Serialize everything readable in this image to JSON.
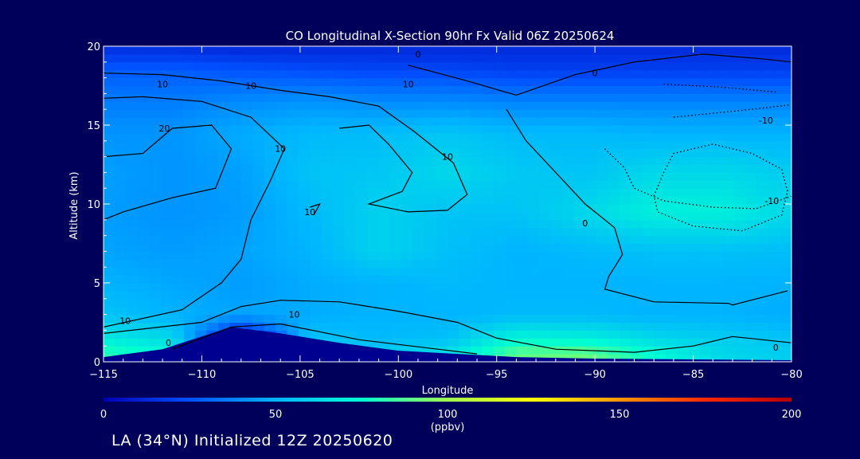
{
  "chart_data": {
    "type": "heatmap",
    "title": "CO Longitudinal X-Section 90hr  Fx Valid 06Z 20250624",
    "xlabel": "Longitude",
    "ylabel": "Altitude (km)",
    "xlim": [
      -115,
      -80
    ],
    "ylim": [
      0,
      20
    ],
    "x_ticks": [
      -115,
      -110,
      -105,
      -100,
      -95,
      -90,
      -85,
      -80
    ],
    "x_tick_labels": [
      "−115",
      "−110",
      "−105",
      "−100",
      "−95",
      "−90",
      "−85",
      "−80"
    ],
    "y_ticks": [
      0,
      5,
      10,
      15,
      20
    ],
    "y_tick_labels": [
      "0",
      "5",
      "10",
      "15",
      "20"
    ],
    "colorbar": {
      "min": 0,
      "max": 200,
      "ticks": [
        0,
        50,
        100,
        150,
        200
      ],
      "tick_labels": [
        "0",
        "50",
        "100",
        "150",
        "200"
      ],
      "units": "(ppbv)",
      "colors": [
        "#0000b4",
        "#0050ff",
        "#00b4ff",
        "#00ffd2",
        "#a0ff50",
        "#ffff00",
        "#ff9600",
        "#ff2800",
        "#b40000"
      ]
    },
    "grid": false,
    "field": {
      "x": [
        -115,
        -111.5,
        -108,
        -104.5,
        -101,
        -97.5,
        -94,
        -90.5,
        -87,
        -83.5,
        -80
      ],
      "y": [
        0.5,
        1.5,
        3,
        5,
        7,
        9.5,
        12,
        14.5,
        16.5,
        18.5,
        19.7
      ],
      "values": [
        [
          82,
          74,
          0,
          60,
          58,
          65,
          90,
          92,
          75,
          62,
          58
        ],
        [
          68,
          62,
          0,
          55,
          52,
          54,
          72,
          70,
          62,
          58,
          55
        ],
        [
          55,
          50,
          46,
          48,
          50,
          50,
          52,
          52,
          50,
          50,
          48
        ],
        [
          50,
          47,
          44,
          48,
          50,
          52,
          50,
          50,
          50,
          50,
          50
        ],
        [
          46,
          44,
          46,
          50,
          60,
          54,
          50,
          52,
          54,
          54,
          53
        ],
        [
          44,
          42,
          44,
          52,
          60,
          55,
          55,
          62,
          70,
          70,
          62
        ],
        [
          45,
          42,
          45,
          55,
          56,
          62,
          57,
          55,
          62,
          62,
          58
        ],
        [
          42,
          42,
          48,
          52,
          53,
          56,
          52,
          52,
          50,
          50,
          50
        ],
        [
          36,
          36,
          40,
          42,
          40,
          40,
          38,
          38,
          38,
          38,
          38
        ],
        [
          28,
          28,
          26,
          24,
          22,
          22,
          20,
          20,
          20,
          20,
          20
        ],
        [
          16,
          16,
          14,
          14,
          14,
          14,
          14,
          14,
          14,
          14,
          14
        ]
      ]
    },
    "terrain": [
      [
        -115,
        0.3
      ],
      [
        -112,
        0.8
      ],
      [
        -110,
        1.6
      ],
      [
        -108.5,
        2.2
      ],
      [
        -106,
        1.8
      ],
      [
        -103,
        1.2
      ],
      [
        -100,
        0.7
      ],
      [
        -97,
        0.5
      ],
      [
        -94,
        0.3
      ],
      [
        -90,
        0.2
      ],
      [
        -85,
        0.15
      ],
      [
        -80,
        0.1
      ]
    ],
    "contours": [
      {
        "label": "0",
        "dashed": false,
        "points": [
          [
            -111.5,
            0.8
          ],
          [
            -108.5,
            2.2
          ],
          [
            -106,
            2.4
          ],
          [
            -102,
            1.4
          ],
          [
            -98,
            0.8
          ],
          [
            -96,
            0.5
          ]
        ]
      },
      {
        "label": "10",
        "dashed": false,
        "points": [
          [
            -115,
            1.8
          ],
          [
            -110,
            2.5
          ],
          [
            -108,
            3.5
          ],
          [
            -106,
            3.9
          ],
          [
            -103,
            3.8
          ],
          [
            -100,
            3.2
          ],
          [
            -97,
            2.5
          ],
          [
            -95,
            1.5
          ],
          [
            -92,
            0.8
          ],
          [
            -88,
            0.6
          ],
          [
            -85,
            1.0
          ],
          [
            -83,
            1.6
          ],
          [
            -80,
            1.2
          ]
        ]
      },
      {
        "label": "10",
        "dashed": false,
        "points": [
          [
            -115,
            2.2
          ],
          [
            -111,
            3.3
          ],
          [
            -109,
            5.0
          ],
          [
            -108,
            6.5
          ],
          [
            -107.5,
            9.0
          ],
          [
            -106.5,
            11.5
          ],
          [
            -105.8,
            13.5
          ],
          [
            -107.5,
            15.5
          ],
          [
            -110,
            16.5
          ],
          [
            -113,
            16.8
          ],
          [
            -115,
            16.7
          ]
        ]
      },
      {
        "label": "20",
        "dashed": false,
        "points": [
          [
            -115,
            13.0
          ],
          [
            -113,
            13.2
          ],
          [
            -111.5,
            14.8
          ],
          [
            -109.5,
            15.0
          ],
          [
            -108.5,
            13.5
          ],
          [
            -109.3,
            11.0
          ],
          [
            -111.5,
            10.4
          ],
          [
            -114,
            9.5
          ],
          [
            -115,
            9.0
          ]
        ]
      },
      {
        "label": "10",
        "dashed": false,
        "points": [
          [
            -104.5,
            9.8
          ],
          [
            -104.0,
            10.0
          ],
          [
            -104.3,
            9.3
          ]
        ]
      },
      {
        "label": "10",
        "dashed": false,
        "points": [
          [
            -103,
            14.8
          ],
          [
            -101.5,
            15.0
          ],
          [
            -100.5,
            13.8
          ],
          [
            -99.3,
            12.0
          ],
          [
            -99.8,
            10.8
          ],
          [
            -101.5,
            10.0
          ],
          [
            -99.5,
            9.5
          ],
          [
            -97.5,
            9.6
          ],
          [
            -96.5,
            10.6
          ],
          [
            -97.2,
            12.6
          ],
          [
            -99.2,
            14.6
          ],
          [
            -101,
            16.2
          ],
          [
            -103.5,
            16.8
          ],
          [
            -106,
            17.2
          ],
          [
            -109,
            17.8
          ],
          [
            -112,
            18.2
          ],
          [
            -115,
            18.3
          ]
        ]
      },
      {
        "label": "0",
        "dashed": false,
        "points": [
          [
            -94.5,
            16.0
          ],
          [
            -93.5,
            14.0
          ],
          [
            -92.0,
            12.0
          ],
          [
            -90.5,
            10.0
          ],
          [
            -89.0,
            8.5
          ],
          [
            -88.6,
            6.8
          ],
          [
            -89.3,
            5.4
          ],
          [
            -89.5,
            4.6
          ],
          [
            -87.0,
            3.8
          ],
          [
            -83.2,
            3.7
          ],
          [
            -83.0,
            3.6
          ],
          [
            -80.2,
            4.5
          ]
        ]
      },
      {
        "label": "0",
        "dashed": false,
        "points": [
          [
            -99.5,
            18.8
          ],
          [
            -96.5,
            17.8
          ],
          [
            -94.0,
            16.9
          ],
          [
            -91.0,
            18.2
          ],
          [
            -88.0,
            19.0
          ],
          [
            -84.5,
            19.5
          ],
          [
            -81.5,
            19.2
          ],
          [
            -80,
            19.0
          ]
        ]
      },
      {
        "label": "-10",
        "dashed": true,
        "points": [
          [
            -86,
            15.5
          ],
          [
            -82,
            16.0
          ],
          [
            -80,
            16.3
          ]
        ]
      },
      {
        "label": "-10",
        "dashed": true,
        "points": [
          [
            -87.0,
            10.5
          ],
          [
            -86.5,
            12.0
          ],
          [
            -86.0,
            13.2
          ],
          [
            -84.0,
            13.8
          ],
          [
            -82.0,
            13.2
          ],
          [
            -80.5,
            12.2
          ],
          [
            -80.2,
            10.8
          ],
          [
            -80.5,
            9.3
          ],
          [
            -82.5,
            8.3
          ],
          [
            -85.0,
            8.6
          ],
          [
            -86.8,
            9.5
          ],
          [
            -87.0,
            10.5
          ]
        ]
      },
      {
        "label": "-10",
        "dashed": true,
        "points": [
          [
            -86.5,
            17.6
          ],
          [
            -83.5,
            17.4
          ],
          [
            -80.8,
            17.1
          ]
        ]
      },
      {
        "label": "-10",
        "dashed": true,
        "points": [
          [
            -89.5,
            13.5
          ],
          [
            -88.5,
            12.3
          ],
          [
            -88.0,
            11.0
          ],
          [
            -86.5,
            10.2
          ],
          [
            -84.0,
            9.8
          ],
          [
            -81.8,
            9.7
          ],
          [
            -80,
            10.5
          ]
        ]
      }
    ],
    "contour_labels": [
      {
        "text": "10",
        "x": -112.0,
        "y": 17.6
      },
      {
        "text": "10",
        "x": -107.5,
        "y": 17.5
      },
      {
        "text": "10",
        "x": -99.5,
        "y": 17.6
      },
      {
        "text": "20",
        "x": -111.9,
        "y": 14.8
      },
      {
        "text": "10",
        "x": -106.0,
        "y": 13.5
      },
      {
        "text": "10",
        "x": -104.5,
        "y": 9.5
      },
      {
        "text": "10",
        "x": -97.5,
        "y": 13.0
      },
      {
        "text": "10",
        "x": -113.9,
        "y": 2.6
      },
      {
        "text": "0",
        "x": -111.7,
        "y": 1.2
      },
      {
        "text": "10",
        "x": -105.3,
        "y": 3.0
      },
      {
        "text": "0",
        "x": -99.0,
        "y": 19.5
      },
      {
        "text": "0",
        "x": -90.0,
        "y": 18.3
      },
      {
        "text": "0",
        "x": -90.5,
        "y": 8.8
      },
      {
        "text": "-10",
        "x": -81.3,
        "y": 15.3
      },
      {
        "text": "-10",
        "x": -81.0,
        "y": 10.2
      },
      {
        "text": "0",
        "x": -80.8,
        "y": 0.9
      }
    ]
  },
  "footer": {
    "caption": "LA (34°N) Initialized 12Z 20250620"
  },
  "colors": {
    "background": "#00005a",
    "text": "#ffffff",
    "contour": "#000000",
    "terrain": "#000090"
  }
}
